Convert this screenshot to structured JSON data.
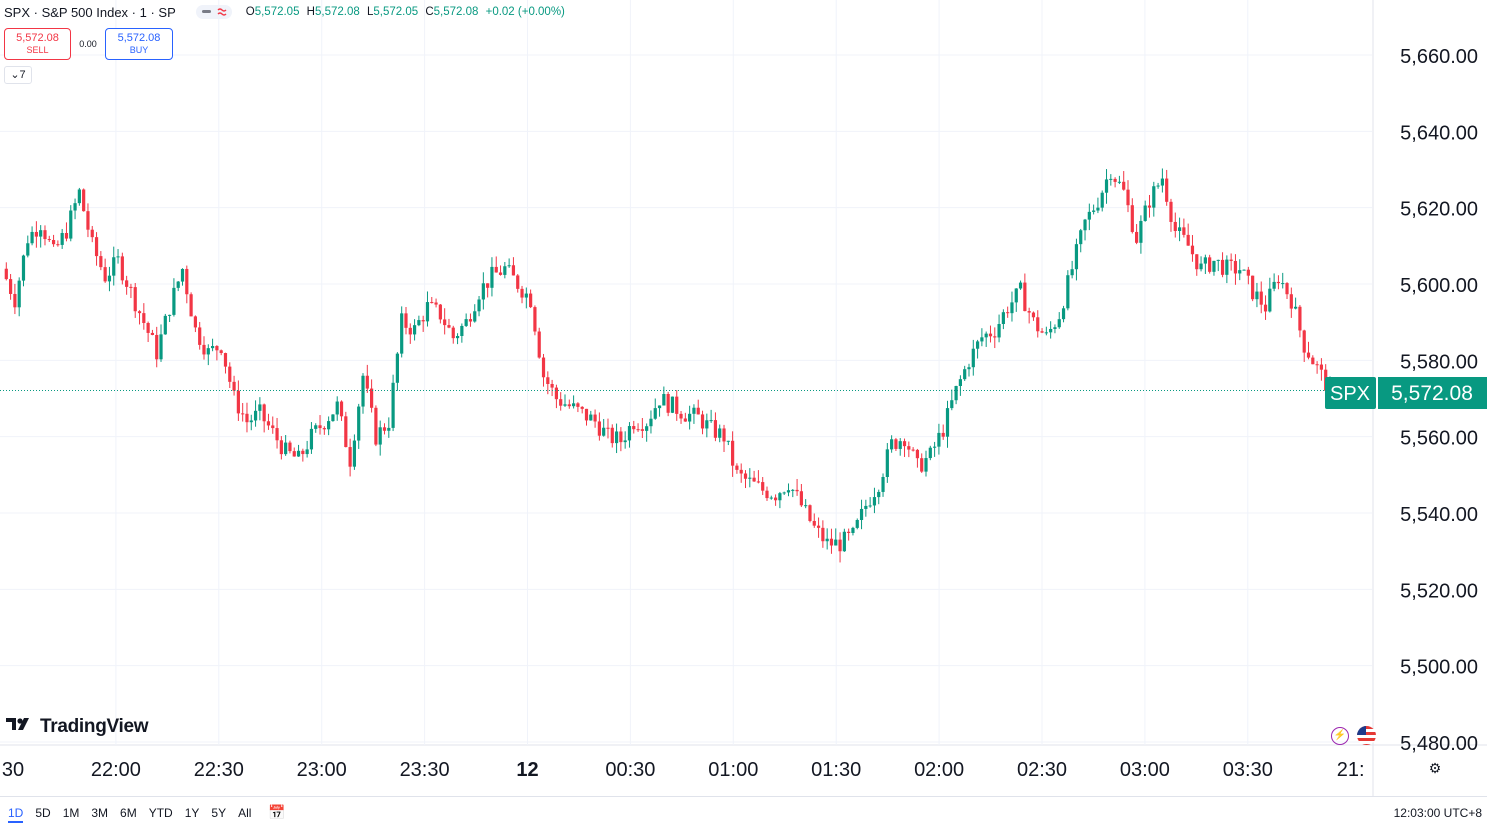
{
  "header": {
    "title": "SPX · S&P 500 Index · 1 · SP",
    "ohlc": {
      "o_label": "O",
      "o": "5,572.05",
      "h_label": "H",
      "h": "5,572.08",
      "l_label": "L",
      "l": "5,572.05",
      "c_label": "C",
      "c": "5,572.08",
      "change": "+0.02 (+0.00%)"
    }
  },
  "trade": {
    "sell_price": "5,572.08",
    "sell_label": "SELL",
    "spread": "0.00",
    "buy_price": "5,572.08",
    "buy_label": "BUY"
  },
  "indicators_toggle": {
    "count": "7"
  },
  "logo_text": "TradingView",
  "price_tag": {
    "symbol": "SPX",
    "price": "5,572.08"
  },
  "bottom": {
    "ranges": [
      "1D",
      "5D",
      "1M",
      "3M",
      "6M",
      "YTD",
      "1Y",
      "5Y",
      "All"
    ],
    "active_range": "1D",
    "clock": "12:03:00 UTC+8"
  },
  "colors": {
    "up": "#089981",
    "down": "#f23645",
    "accent": "#2962ff",
    "grid": "#f0f3fa"
  },
  "chart_data": {
    "type": "candlestick",
    "symbol": "SPX",
    "interval": "1",
    "ylim": [
      5480,
      5660
    ],
    "y_ticks": [
      "5,660.00",
      "5,640.00",
      "5,620.00",
      "5,600.00",
      "5,580.00",
      "5,560.00",
      "5,540.00",
      "5,520.00",
      "5,500.00",
      "5,480.00"
    ],
    "y_tick_values": [
      5660,
      5640,
      5620,
      5600,
      5580,
      5560,
      5540,
      5520,
      5500,
      5480
    ],
    "x_ticks": [
      "30",
      "22:00",
      "22:30",
      "23:00",
      "23:30",
      "12",
      "00:30",
      "01:00",
      "01:30",
      "02:00",
      "02:30",
      "03:00",
      "03:30",
      "21:"
    ],
    "x_tick_bold": [
      false,
      false,
      false,
      false,
      false,
      true,
      false,
      false,
      false,
      false,
      false,
      false,
      false,
      false
    ],
    "last_price": 5572.08,
    "closes": [
      5604,
      5596,
      5612,
      5616,
      5608,
      5614,
      5624,
      5610,
      5602,
      5606,
      5598,
      5590,
      5582,
      5594,
      5604,
      5588,
      5582,
      5584,
      5570,
      5564,
      5566,
      5561,
      5556,
      5554,
      5560,
      5564,
      5568,
      5554,
      5576,
      5560,
      5564,
      5590,
      5588,
      5594,
      5592,
      5586,
      5590,
      5598,
      5602,
      5604,
      5600,
      5596,
      5576,
      5570,
      5568,
      5566,
      5564,
      5560,
      5559,
      5564,
      5564,
      5570,
      5568,
      5566,
      5565,
      5562,
      5560,
      5550,
      5548,
      5546,
      5545,
      5548,
      5542,
      5536,
      5532,
      5532,
      5534,
      5542,
      5548,
      5558,
      5560,
      5552,
      5555,
      5562,
      5572,
      5580,
      5586,
      5588,
      5594,
      5598,
      5590,
      5586,
      5592,
      5604,
      5616,
      5622,
      5630,
      5624,
      5612,
      5622,
      5628,
      5614,
      5610,
      5604,
      5606,
      5604,
      5604,
      5598,
      5594,
      5602,
      5596,
      5584,
      5578,
      5572
    ]
  }
}
